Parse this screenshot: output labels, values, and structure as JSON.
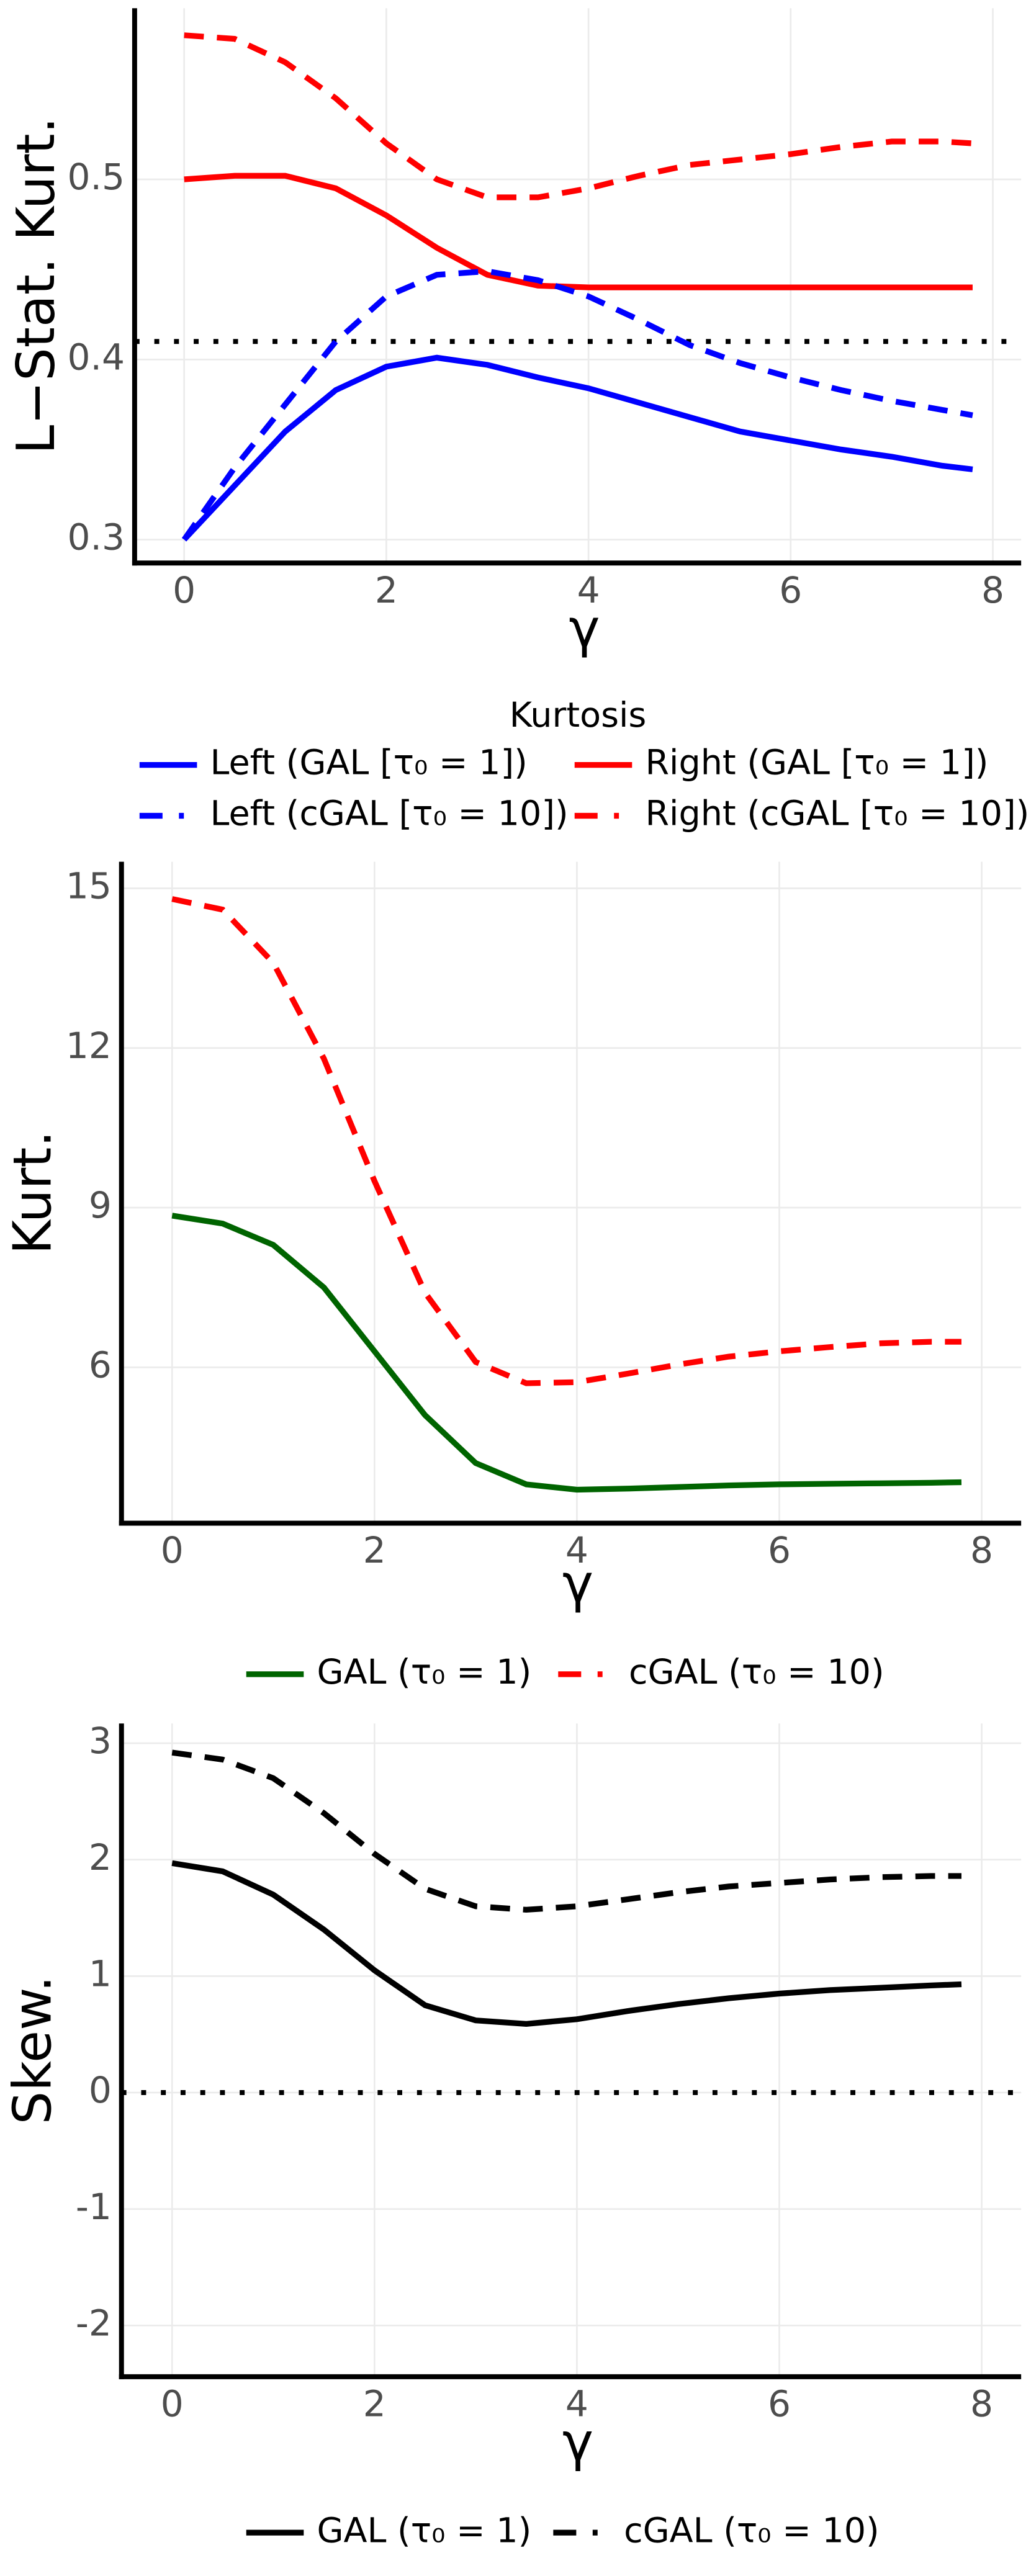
{
  "chart_data": [
    {
      "type": "line",
      "x_label": "γ",
      "y_label": "L−Stat. Kurt.",
      "legend_title": "Kurtosis",
      "x": [
        0,
        0.5,
        1,
        1.5,
        2,
        2.5,
        3,
        3.5,
        4,
        4.5,
        5,
        5.5,
        6,
        6.5,
        7,
        7.5,
        7.8
      ],
      "xlim": [
        -0.49,
        8.28
      ],
      "xticks": [
        0,
        2,
        4,
        6,
        8
      ],
      "ylim": [
        0.287,
        0.595
      ],
      "yticks": [
        0.3,
        0.4,
        0.5
      ],
      "grid": true,
      "reference_line": {
        "value": 0.41,
        "style": "dotted",
        "color": "#000000"
      },
      "series": [
        {
          "name": "Left (GAL [τ₀ = 1])",
          "color": "#0000ff",
          "style": "solid",
          "values": [
            0.3,
            0.33,
            0.36,
            0.383,
            0.396,
            0.401,
            0.397,
            0.39,
            0.384,
            0.376,
            0.368,
            0.36,
            0.355,
            0.35,
            0.346,
            0.341,
            0.339
          ]
        },
        {
          "name": "Right (GAL [τ₀ = 1])",
          "color": "#ff0000",
          "style": "solid",
          "values": [
            0.5,
            0.502,
            0.502,
            0.495,
            0.48,
            0.462,
            0.447,
            0.441,
            0.44,
            0.44,
            0.44,
            0.44,
            0.44,
            0.44,
            0.44,
            0.44,
            0.44
          ]
        },
        {
          "name": "Left (cGAL [τ₀ = 10])",
          "color": "#0000ff",
          "style": "dashed",
          "values": [
            0.3,
            0.34,
            0.375,
            0.41,
            0.435,
            0.447,
            0.449,
            0.444,
            0.435,
            0.422,
            0.408,
            0.398,
            0.39,
            0.383,
            0.377,
            0.372,
            0.369
          ]
        },
        {
          "name": "Right (cGAL [τ₀ = 10])",
          "color": "#ff0000",
          "style": "dashed",
          "values": [
            0.58,
            0.578,
            0.565,
            0.545,
            0.52,
            0.5,
            0.49,
            0.49,
            0.495,
            0.502,
            0.508,
            0.511,
            0.514,
            0.518,
            0.521,
            0.521,
            0.52
          ]
        }
      ]
    },
    {
      "type": "line",
      "x_label": "γ",
      "y_label": "Kurt.",
      "x": [
        0,
        0.5,
        1,
        1.5,
        2,
        2.5,
        3,
        3.5,
        4,
        4.5,
        5,
        5.5,
        6,
        6.5,
        7,
        7.5,
        7.8
      ],
      "xlim": [
        -0.5,
        8.39
      ],
      "xticks": [
        0,
        2,
        4,
        6,
        8
      ],
      "ylim": [
        3.07,
        15.5
      ],
      "yticks": [
        6,
        9,
        12,
        15
      ],
      "grid": true,
      "series": [
        {
          "name": "GAL (τ₀ = 1)",
          "color": "#006400",
          "style": "solid",
          "values": [
            8.85,
            8.7,
            8.3,
            7.5,
            6.3,
            5.1,
            4.2,
            3.8,
            3.7,
            3.72,
            3.75,
            3.78,
            3.8,
            3.81,
            3.82,
            3.83,
            3.84
          ]
        },
        {
          "name": "cGAL (τ₀ = 10)",
          "color": "#ff0000",
          "style": "dashed",
          "values": [
            14.8,
            14.6,
            13.6,
            11.8,
            9.5,
            7.4,
            6.1,
            5.7,
            5.72,
            5.88,
            6.05,
            6.2,
            6.3,
            6.38,
            6.45,
            6.48,
            6.48
          ]
        }
      ]
    },
    {
      "type": "line",
      "x_label": "γ",
      "y_label": "Skew.",
      "x": [
        0,
        0.5,
        1,
        1.5,
        2,
        2.5,
        3,
        3.5,
        4,
        4.5,
        5,
        5.5,
        6,
        6.5,
        7,
        7.5,
        7.8
      ],
      "xlim": [
        -0.5,
        8.39
      ],
      "xticks": [
        0,
        2,
        4,
        6,
        8
      ],
      "ylim": [
        -2.44,
        3.17
      ],
      "yticks": [
        -2,
        -1,
        0,
        1,
        2,
        3
      ],
      "grid": true,
      "reference_line": {
        "value": 0,
        "style": "dotted",
        "color": "#000000"
      },
      "series": [
        {
          "name": "GAL (τ₀ = 1)",
          "color": "#000000",
          "style": "solid",
          "values": [
            1.97,
            1.9,
            1.7,
            1.4,
            1.05,
            0.75,
            0.62,
            0.59,
            0.63,
            0.7,
            0.76,
            0.81,
            0.85,
            0.88,
            0.9,
            0.92,
            0.93
          ]
        },
        {
          "name": "cGAL (τ₀ = 10)",
          "color": "#000000",
          "style": "dashed",
          "values": [
            2.92,
            2.86,
            2.7,
            2.4,
            2.05,
            1.75,
            1.6,
            1.57,
            1.6,
            1.66,
            1.72,
            1.77,
            1.8,
            1.83,
            1.85,
            1.86,
            1.86
          ]
        }
      ]
    }
  ]
}
